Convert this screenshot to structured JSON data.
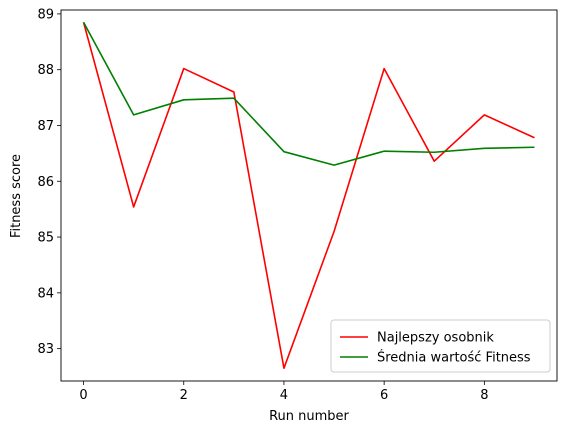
{
  "chart_data": {
    "type": "line",
    "title": "",
    "xlabel": "Run number",
    "ylabel": "Fitness score",
    "x": [
      0,
      1,
      2,
      3,
      4,
      5,
      6,
      7,
      8,
      9
    ],
    "xlim": [
      -0.45,
      9.45
    ],
    "ylim": [
      82.42,
      89.07
    ],
    "xticks": [
      0,
      2,
      4,
      6,
      8
    ],
    "yticks": [
      83,
      84,
      85,
      86,
      87,
      88,
      89
    ],
    "grid": false,
    "legend_position": "lower-right",
    "series": [
      {
        "name": "Najlepszy osobnik",
        "color": "#ff0000",
        "values": [
          88.85,
          85.54,
          88.02,
          87.6,
          82.65,
          85.1,
          88.02,
          86.36,
          87.19,
          86.78
        ]
      },
      {
        "name": "Średnia wartość Fitness",
        "color": "#008000",
        "values": [
          88.85,
          87.19,
          87.46,
          87.49,
          86.53,
          86.29,
          86.54,
          86.52,
          86.59,
          86.61
        ]
      }
    ]
  }
}
